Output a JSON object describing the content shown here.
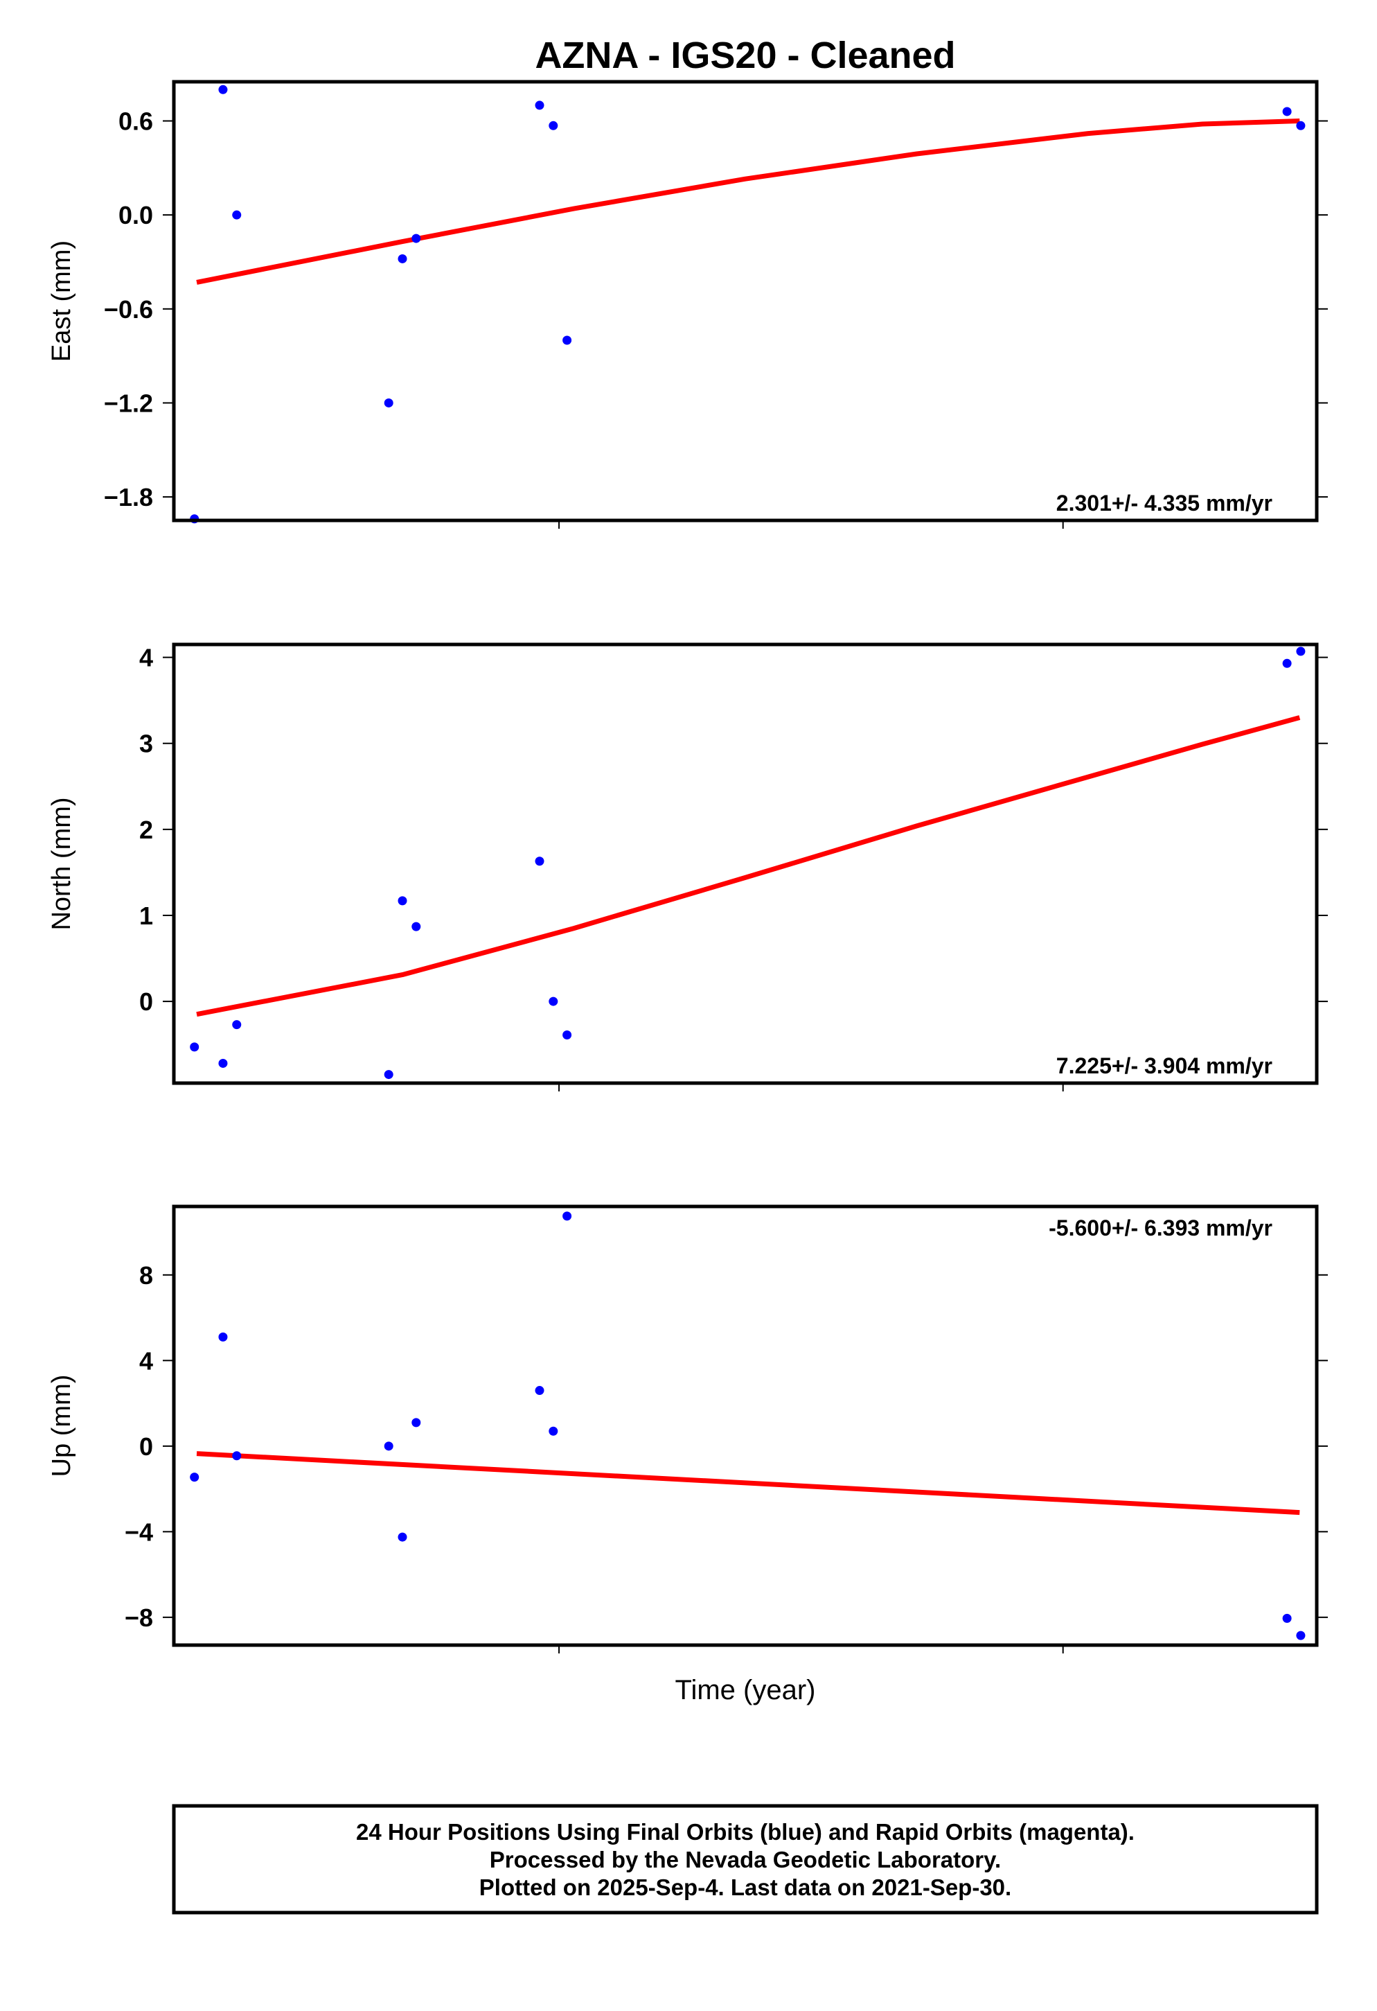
{
  "chart_data": {
    "type": "scatter",
    "title": "AZNA  - IGS20 - Cleaned",
    "xlabel": "Time (year)",
    "colors": {
      "points": "#0000ff",
      "fit": "#ff0000",
      "frame": "#000000"
    },
    "panels": [
      {
        "ylabel": "East (mm)",
        "ylim": [
          -1.95,
          0.85
        ],
        "yticks": [
          0.6,
          0.0,
          -0.6,
          -1.2,
          -1.8
        ],
        "ytick_labels": [
          "0.6",
          "0.0",
          "−0.6",
          "−1.2",
          "−1.8"
        ],
        "rate": "2.301+/- 4.335 mm/yr",
        "rate_position": "bottom-right",
        "points": [
          {
            "t": 0.018,
            "v": -1.94
          },
          {
            "t": 0.043,
            "v": 0.8
          },
          {
            "t": 0.055,
            "v": 0.0
          },
          {
            "t": 0.188,
            "v": -1.2
          },
          {
            "t": 0.2,
            "v": -0.28
          },
          {
            "t": 0.212,
            "v": -0.15
          },
          {
            "t": 0.32,
            "v": 0.7
          },
          {
            "t": 0.332,
            "v": 0.57
          },
          {
            "t": 0.344,
            "v": -0.8
          },
          {
            "t": 0.974,
            "v": 0.66
          },
          {
            "t": 0.986,
            "v": 0.57
          }
        ],
        "fit": [
          {
            "t": 0.02,
            "v": -0.43
          },
          {
            "t": 0.2,
            "v": -0.17
          },
          {
            "t": 0.35,
            "v": 0.04
          },
          {
            "t": 0.5,
            "v": 0.23
          },
          {
            "t": 0.65,
            "v": 0.39
          },
          {
            "t": 0.8,
            "v": 0.52
          },
          {
            "t": 0.9,
            "v": 0.58
          },
          {
            "t": 0.985,
            "v": 0.6
          }
        ]
      },
      {
        "ylabel": "North (mm)",
        "ylim": [
          -0.95,
          4.15
        ],
        "yticks": [
          4,
          3,
          2,
          1,
          0
        ],
        "ytick_labels": [
          "4",
          "3",
          "2",
          "1",
          "0"
        ],
        "rate": "7.225+/- 3.904 mm/yr",
        "rate_position": "bottom-right",
        "points": [
          {
            "t": 0.018,
            "v": -0.53
          },
          {
            "t": 0.043,
            "v": -0.72
          },
          {
            "t": 0.055,
            "v": -0.27
          },
          {
            "t": 0.188,
            "v": -0.85
          },
          {
            "t": 0.2,
            "v": 1.17
          },
          {
            "t": 0.212,
            "v": 0.87
          },
          {
            "t": 0.32,
            "v": 1.63
          },
          {
            "t": 0.332,
            "v": 0.0
          },
          {
            "t": 0.344,
            "v": -0.39
          },
          {
            "t": 0.974,
            "v": 3.93
          },
          {
            "t": 0.986,
            "v": 4.07
          }
        ],
        "fit": [
          {
            "t": 0.02,
            "v": -0.15
          },
          {
            "t": 0.2,
            "v": 0.31
          },
          {
            "t": 0.35,
            "v": 0.85
          },
          {
            "t": 0.5,
            "v": 1.44
          },
          {
            "t": 0.65,
            "v": 2.04
          },
          {
            "t": 0.8,
            "v": 2.61
          },
          {
            "t": 0.9,
            "v": 2.99
          },
          {
            "t": 0.985,
            "v": 3.3
          }
        ]
      },
      {
        "ylabel": "Up (mm)",
        "ylim": [
          -9.3,
          11.2
        ],
        "yticks": [
          8,
          4,
          0,
          -4,
          -8
        ],
        "ytick_labels": [
          "8",
          "4",
          "0",
          "−4",
          "−8"
        ],
        "rate": "-5.600+/- 6.393 mm/yr",
        "rate_position": "top-right",
        "points": [
          {
            "t": 0.018,
            "v": -1.45
          },
          {
            "t": 0.043,
            "v": 5.1
          },
          {
            "t": 0.055,
            "v": -0.45
          },
          {
            "t": 0.188,
            "v": 0.0
          },
          {
            "t": 0.2,
            "v": -4.25
          },
          {
            "t": 0.212,
            "v": 1.1
          },
          {
            "t": 0.32,
            "v": 2.6
          },
          {
            "t": 0.332,
            "v": 0.7
          },
          {
            "t": 0.344,
            "v": 10.75
          },
          {
            "t": 0.974,
            "v": -8.05
          },
          {
            "t": 0.986,
            "v": -8.85
          }
        ],
        "fit": [
          {
            "t": 0.02,
            "v": -0.35
          },
          {
            "t": 0.985,
            "v": -3.1
          }
        ]
      }
    ],
    "footer": [
      "24 Hour Positions Using Final Orbits (blue) and Rapid Orbits (magenta).",
      "Processed by the Nevada Geodetic Laboratory.",
      "Plotted on 2025-Sep-4. Last data on 2021-Sep-30."
    ]
  }
}
